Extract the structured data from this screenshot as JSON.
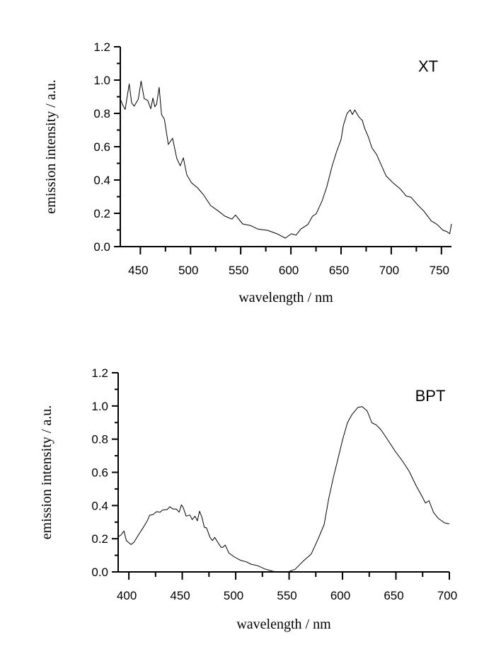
{
  "chart_data": [
    {
      "type": "line",
      "annotation": "XT",
      "xlabel": "wavelength / nm",
      "ylabel": "emission intensity / a.u.",
      "xlim": [
        430,
        760
      ],
      "ylim": [
        0,
        1.2
      ],
      "xticks": [
        450,
        500,
        550,
        600,
        650,
        700,
        750
      ],
      "xminor": 25,
      "yticks": [
        "0.0",
        "0.2",
        "0.4",
        "0.6",
        "0.8",
        "1.0",
        "1.2"
      ],
      "yminor": 0.1,
      "grid": false,
      "series": [
        {
          "name": "XT",
          "x": [
            430.6,
            432.5,
            434.9,
            438.9,
            441.3,
            443.8,
            447.9,
            450.7,
            453.8,
            457.3,
            460.4,
            462.5,
            464.4,
            466.1,
            468.7,
            471.1,
            473.9,
            477.9,
            482.1,
            486.2,
            489.7,
            492.8,
            496.3,
            501.1,
            507,
            512.9,
            520,
            527.1,
            534.2,
            541.3,
            544.8,
            551.9,
            560.1,
            567.2,
            576.7,
            586.2,
            594.5,
            600.4,
            605.1,
            609.8,
            616.9,
            621.6,
            625.2,
            631.1,
            635.8,
            640.6,
            645.3,
            650,
            652.3,
            656,
            659.1,
            661.3,
            663.7,
            667.7,
            671.3,
            673.2,
            677.2,
            680.7,
            685.5,
            690.2,
            694.9,
            702,
            709.1,
            715,
            719.7,
            725.7,
            732.8,
            739.9,
            745.7,
            751.6,
            755.2,
            758.3,
            760
          ],
          "y": [
            0.878,
            0.85,
            0.824,
            0.977,
            0.864,
            0.843,
            0.885,
            0.994,
            0.888,
            0.878,
            0.828,
            0.892,
            0.84,
            0.854,
            0.956,
            0.793,
            0.765,
            0.613,
            0.651,
            0.531,
            0.485,
            0.533,
            0.431,
            0.382,
            0.353,
            0.311,
            0.247,
            0.216,
            0.183,
            0.165,
            0.19,
            0.136,
            0.126,
            0.105,
            0.098,
            0.077,
            0.051,
            0.077,
            0.069,
            0.105,
            0.133,
            0.183,
            0.197,
            0.275,
            0.36,
            0.474,
            0.566,
            0.644,
            0.729,
            0.8,
            0.821,
            0.793,
            0.821,
            0.779,
            0.757,
            0.715,
            0.658,
            0.594,
            0.552,
            0.488,
            0.424,
            0.382,
            0.346,
            0.303,
            0.297,
            0.254,
            0.211,
            0.154,
            0.133,
            0.098,
            0.091,
            0.077,
            0.136
          ]
        }
      ]
    },
    {
      "type": "line",
      "annotation": "BPT",
      "xlabel": "wavelength / nm",
      "ylabel": "emission intensity / a.u.",
      "xlim": [
        390,
        700
      ],
      "ylim": [
        0,
        1.2
      ],
      "xticks": [
        400,
        450,
        500,
        550,
        600,
        650,
        700
      ],
      "xminor": 25,
      "yticks": [
        "0.0",
        "0.2",
        "0.4",
        "0.6",
        "0.8",
        "1.0",
        "1.2"
      ],
      "yminor": 0.1,
      "grid": false,
      "series": [
        {
          "name": "BPT",
          "x": [
            390,
            392.6,
            395.4,
            397.6,
            402,
            404.8,
            409.6,
            413.9,
            417.2,
            419.4,
            422.7,
            425.9,
            429.2,
            431.4,
            435.8,
            438.4,
            441.2,
            444.4,
            447.1,
            449.2,
            451,
            453.6,
            457.1,
            459.3,
            461.9,
            464.1,
            466.2,
            468.4,
            470.6,
            472.7,
            476,
            478.2,
            480.4,
            483.2,
            486.3,
            488,
            490.2,
            493.5,
            497.8,
            504.4,
            509.8,
            514.2,
            520.7,
            527.3,
            534.8,
            540.3,
            549,
            555.6,
            563.2,
            570.8,
            577.3,
            582.8,
            587.1,
            591.5,
            595.9,
            600.2,
            604.6,
            608.9,
            614.4,
            618.3,
            623.1,
            627.5,
            631.8,
            636.1,
            642.7,
            649.2,
            655.8,
            662.3,
            668.8,
            674.3,
            677.6,
            680.9,
            685.2,
            689.7,
            695.6,
            700
          ],
          "y": [
            0.212,
            0.222,
            0.247,
            0.189,
            0.165,
            0.179,
            0.229,
            0.272,
            0.308,
            0.341,
            0.346,
            0.363,
            0.36,
            0.372,
            0.376,
            0.393,
            0.379,
            0.379,
            0.36,
            0.405,
            0.386,
            0.336,
            0.343,
            0.315,
            0.336,
            0.308,
            0.366,
            0.329,
            0.269,
            0.265,
            0.208,
            0.189,
            0.208,
            0.179,
            0.148,
            0.148,
            0.162,
            0.115,
            0.094,
            0.07,
            0.061,
            0.047,
            0.037,
            0.018,
            0.004,
            0,
            0.001,
            0.016,
            0.065,
            0.108,
            0.201,
            0.286,
            0.443,
            0.571,
            0.685,
            0.799,
            0.899,
            0.949,
            0.991,
            0.996,
            0.97,
            0.899,
            0.885,
            0.856,
            0.792,
            0.728,
            0.671,
            0.607,
            0.521,
            0.457,
            0.415,
            0.429,
            0.358,
            0.322,
            0.295,
            0.29
          ]
        }
      ]
    }
  ]
}
